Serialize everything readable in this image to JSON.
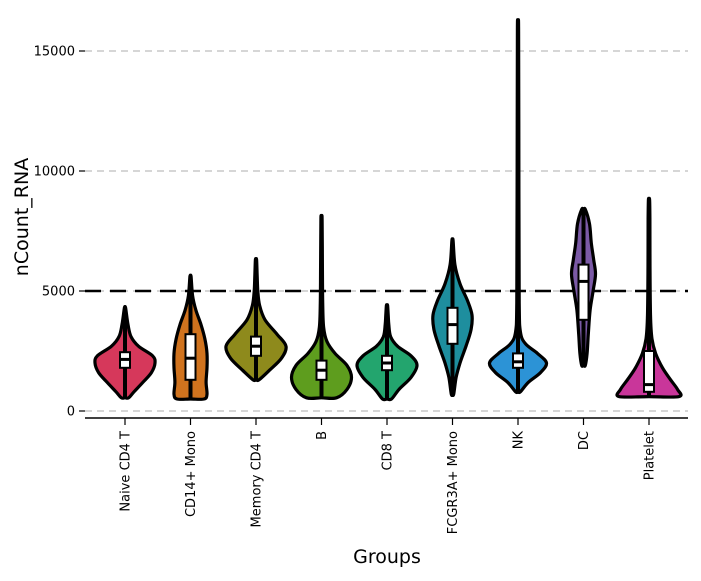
{
  "chart_data": {
    "type": "violin",
    "xlabel": "Groups",
    "ylabel": "nCount_RNA",
    "ylim": [
      -300,
      16000
    ],
    "y_ticks": [
      0,
      5000,
      10000,
      15000
    ],
    "grid": "horizontal-dashed",
    "threshold_line": 5000,
    "categories": [
      "Naive CD4 T",
      "CD14+ Mono",
      "Memory CD4 T",
      "B",
      "CD8 T",
      "FCGR3A+ Mono",
      "NK",
      "DC",
      "Platelet"
    ],
    "colors": [
      "#D6385B",
      "#D0731E",
      "#8E8A1C",
      "#5E9D1E",
      "#23A56E",
      "#1E8E9E",
      "#2C93D6",
      "#7B5AA6",
      "#C9369A"
    ],
    "violins": [
      {
        "name": "Naive CD4 T",
        "min": 550,
        "max": 4300,
        "q1": 1800,
        "median": 2150,
        "q3": 2450,
        "profile": [
          [
            550,
            0.12
          ],
          [
            800,
            0.3
          ],
          [
            1200,
            0.6
          ],
          [
            1600,
            0.88
          ],
          [
            2000,
            1.0
          ],
          [
            2300,
            0.92
          ],
          [
            2700,
            0.45
          ],
          [
            3100,
            0.2
          ],
          [
            3600,
            0.1
          ],
          [
            4300,
            0.02
          ]
        ]
      },
      {
        "name": "CD14+ Mono",
        "min": 500,
        "max": 5600,
        "q1": 1300,
        "median": 2200,
        "q3": 3200,
        "profile": [
          [
            500,
            0.45
          ],
          [
            700,
            0.55
          ],
          [
            1200,
            0.52
          ],
          [
            1800,
            0.55
          ],
          [
            2400,
            0.55
          ],
          [
            3000,
            0.48
          ],
          [
            3600,
            0.35
          ],
          [
            4200,
            0.18
          ],
          [
            4800,
            0.07
          ],
          [
            5600,
            0.02
          ]
        ]
      },
      {
        "name": "Memory CD4 T",
        "min": 1300,
        "max": 6300,
        "q1": 2300,
        "median": 2700,
        "q3": 3100,
        "profile": [
          [
            1300,
            0.1
          ],
          [
            1700,
            0.45
          ],
          [
            2200,
            0.85
          ],
          [
            2700,
            1.0
          ],
          [
            3200,
            0.7
          ],
          [
            3800,
            0.3
          ],
          [
            4400,
            0.12
          ],
          [
            5000,
            0.06
          ],
          [
            5600,
            0.04
          ],
          [
            6300,
            0.02
          ]
        ]
      },
      {
        "name": "B",
        "min": 550,
        "max": 8000,
        "q1": 1300,
        "median": 1700,
        "q3": 2100,
        "profile": [
          [
            550,
            0.5
          ],
          [
            900,
            0.85
          ],
          [
            1400,
            1.0
          ],
          [
            1900,
            0.85
          ],
          [
            2400,
            0.45
          ],
          [
            2900,
            0.18
          ],
          [
            3500,
            0.07
          ],
          [
            4500,
            0.04
          ],
          [
            6000,
            0.03
          ],
          [
            8000,
            0.02
          ]
        ]
      },
      {
        "name": "CD8 T",
        "min": 500,
        "max": 4400,
        "q1": 1700,
        "median": 2000,
        "q3": 2300,
        "profile": [
          [
            500,
            0.15
          ],
          [
            900,
            0.4
          ],
          [
            1400,
            0.8
          ],
          [
            1900,
            1.0
          ],
          [
            2300,
            0.8
          ],
          [
            2700,
            0.35
          ],
          [
            3100,
            0.12
          ],
          [
            3600,
            0.06
          ],
          [
            4000,
            0.04
          ],
          [
            4400,
            0.02
          ]
        ]
      },
      {
        "name": "FCGR3A+ Mono",
        "min": 700,
        "max": 7100,
        "q1": 2800,
        "median": 3600,
        "q3": 4300,
        "profile": [
          [
            700,
            0.04
          ],
          [
            1400,
            0.12
          ],
          [
            2000,
            0.25
          ],
          [
            2700,
            0.45
          ],
          [
            3400,
            0.62
          ],
          [
            4000,
            0.65
          ],
          [
            4600,
            0.5
          ],
          [
            5300,
            0.25
          ],
          [
            6100,
            0.08
          ],
          [
            7100,
            0.02
          ]
        ]
      },
      {
        "name": "NK",
        "min": 800,
        "max": 15800,
        "q1": 1800,
        "median": 2050,
        "q3": 2400,
        "profile": [
          [
            800,
            0.08
          ],
          [
            1200,
            0.35
          ],
          [
            1600,
            0.75
          ],
          [
            2000,
            0.95
          ],
          [
            2400,
            0.65
          ],
          [
            2800,
            0.25
          ],
          [
            3300,
            0.08
          ],
          [
            4500,
            0.04
          ],
          [
            9000,
            0.03
          ],
          [
            15800,
            0.02
          ]
        ]
      },
      {
        "name": "DC",
        "min": 1900,
        "max": 8400,
        "q1": 3800,
        "median": 5400,
        "q3": 6100,
        "profile": [
          [
            1900,
            0.06
          ],
          [
            2400,
            0.12
          ],
          [
            3200,
            0.16
          ],
          [
            4200,
            0.22
          ],
          [
            5000,
            0.32
          ],
          [
            5700,
            0.4
          ],
          [
            6300,
            0.34
          ],
          [
            7000,
            0.26
          ],
          [
            7800,
            0.2
          ],
          [
            8400,
            0.06
          ]
        ]
      },
      {
        "name": "Platelet",
        "min": 600,
        "max": 8800,
        "q1": 800,
        "median": 1100,
        "q3": 2500,
        "profile": [
          [
            600,
            1.0
          ],
          [
            900,
            0.95
          ],
          [
            1300,
            0.72
          ],
          [
            1800,
            0.45
          ],
          [
            2400,
            0.22
          ],
          [
            3000,
            0.1
          ],
          [
            4000,
            0.05
          ],
          [
            6000,
            0.035
          ],
          [
            8000,
            0.03
          ],
          [
            8800,
            0.02
          ]
        ]
      }
    ]
  }
}
